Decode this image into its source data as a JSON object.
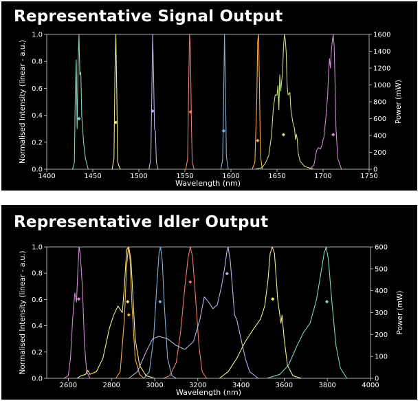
{
  "chart_data": [
    {
      "type": "line",
      "title": "Representative Signal Output",
      "xlabel": "Wavelength (nm)",
      "ylabel": "Normalised Intensity (linear - a.u.)",
      "y2label": "Power (mW)",
      "xlim": [
        1400,
        1750
      ],
      "ylim": [
        0,
        1.0
      ],
      "y2lim": [
        0,
        1600
      ],
      "xticks": [
        1400,
        1450,
        1500,
        1550,
        1600,
        1650,
        1700,
        1750
      ],
      "yticks": [
        0.0,
        0.2,
        0.4,
        0.6,
        0.8,
        1.0
      ],
      "y2ticks": [
        0,
        200,
        400,
        600,
        800,
        1000,
        1200,
        1400,
        1600
      ],
      "grid": false,
      "background": "#000000",
      "series": [
        {
          "color": "#7fd6c4",
          "points": [
            [
              1428,
              0
            ],
            [
              1430,
              0.05
            ],
            [
              1431,
              0.55
            ],
            [
              1432,
              0.81
            ],
            [
              1433,
              0.3
            ],
            [
              1434,
              0.78
            ],
            [
              1435,
              1.0
            ],
            [
              1436,
              0.7
            ],
            [
              1437,
              0.72
            ],
            [
              1438,
              0.4
            ],
            [
              1440,
              0.2
            ],
            [
              1442,
              0.08
            ],
            [
              1445,
              0
            ]
          ],
          "marker": [
            1435,
            600
          ]
        },
        {
          "color": "#f2ef8a",
          "points": [
            [
              1471,
              0
            ],
            [
              1473,
              0.08
            ],
            [
              1474,
              0.7
            ],
            [
              1475,
              1.0
            ],
            [
              1476,
              0.6
            ],
            [
              1477,
              0.06
            ],
            [
              1478,
              0.03
            ],
            [
              1480,
              0
            ]
          ],
          "marker": [
            1475,
            555
          ]
        },
        {
          "color": "#b9b4e6",
          "points": [
            [
              1511,
              0
            ],
            [
              1513,
              0.08
            ],
            [
              1514,
              0.55
            ],
            [
              1515,
              1.0
            ],
            [
              1516,
              0.7
            ],
            [
              1517,
              0.3
            ],
            [
              1518,
              0.28
            ],
            [
              1519,
              0.05
            ],
            [
              1521,
              0
            ]
          ],
          "marker": [
            1515,
            690
          ]
        },
        {
          "color": "#f07a6b",
          "points": [
            [
              1551,
              0
            ],
            [
              1553,
              0.08
            ],
            [
              1554,
              0.6
            ],
            [
              1555,
              1.0
            ],
            [
              1556,
              0.9
            ],
            [
              1557,
              0.35
            ],
            [
              1558,
              0.05
            ],
            [
              1560,
              0
            ]
          ],
          "marker": [
            1556,
            680
          ]
        },
        {
          "color": "#84b4db",
          "points": [
            [
              1589,
              0
            ],
            [
              1591,
              0.07
            ],
            [
              1592,
              0.5
            ],
            [
              1593,
              1.0
            ],
            [
              1594,
              0.6
            ],
            [
              1595,
              0.1
            ],
            [
              1597,
              0
            ]
          ],
          "marker": [
            1592,
            455
          ]
        },
        {
          "color": "#f4ab4f",
          "points": [
            [
              1623,
              0
            ],
            [
              1626,
              0.05
            ],
            [
              1628,
              0.5
            ],
            [
              1629,
              0.95
            ],
            [
              1630,
              1.0
            ],
            [
              1631,
              0.6
            ],
            [
              1632,
              0.1
            ],
            [
              1634,
              0
            ]
          ],
          "marker": [
            1629,
            340
          ]
        },
        {
          "color": "#c1e07a",
          "points": [
            [
              1626,
              0
            ],
            [
              1633,
              0.01
            ],
            [
              1637,
              0.04
            ],
            [
              1641,
              0.1
            ],
            [
              1644,
              0.25
            ],
            [
              1646,
              0.45
            ],
            [
              1648,
              0.55
            ],
            [
              1650,
              0.55
            ],
            [
              1651,
              0.62
            ],
            [
              1652,
              0.44
            ],
            [
              1653,
              0.7
            ],
            [
              1654,
              0.58
            ],
            [
              1656,
              0.72
            ],
            [
              1657,
              0.9
            ],
            [
              1658,
              1.0
            ],
            [
              1659,
              0.96
            ],
            [
              1660,
              0.86
            ],
            [
              1661,
              0.62
            ],
            [
              1662,
              0.55
            ],
            [
              1664,
              0.57
            ],
            [
              1665,
              0.45
            ],
            [
              1667,
              0.35
            ],
            [
              1669,
              0.3
            ],
            [
              1670,
              0.22
            ],
            [
              1671,
              0.26
            ],
            [
              1672,
              0.22
            ],
            [
              1673,
              0.12
            ],
            [
              1675,
              0.06
            ],
            [
              1680,
              0.02
            ],
            [
              1690,
              0
            ]
          ],
          "marker": [
            1657,
            410
          ]
        },
        {
          "color": "#d18ad6",
          "points": [
            [
              1685,
              0
            ],
            [
              1690,
              0.03
            ],
            [
              1693,
              0.14
            ],
            [
              1695,
              0.16
            ],
            [
              1697,
              0.15
            ],
            [
              1699,
              0.18
            ],
            [
              1700,
              0.22
            ],
            [
              1701,
              0.24
            ],
            [
              1703,
              0.38
            ],
            [
              1705,
              0.55
            ],
            [
              1706,
              0.72
            ],
            [
              1707,
              0.82
            ],
            [
              1708,
              0.75
            ],
            [
              1709,
              0.88
            ],
            [
              1710,
              0.95
            ],
            [
              1711,
              1.0
            ],
            [
              1712,
              0.92
            ],
            [
              1713,
              0.65
            ],
            [
              1714,
              0.3
            ],
            [
              1716,
              0.08
            ],
            [
              1720,
              0
            ]
          ],
          "marker": [
            1711,
            410
          ]
        }
      ]
    },
    {
      "type": "line",
      "title": "Representative Idler Output",
      "xlabel": "Wavelength (nm)",
      "ylabel": "Normalised Intensity (linear - a.u.)",
      "y2label": "Power (mW)",
      "xlim": [
        2500,
        4000
      ],
      "ylim": [
        0,
        1.0
      ],
      "y2lim": [
        0,
        600
      ],
      "xticks": [
        2600,
        2800,
        3000,
        3200,
        3400,
        3600,
        3800,
        4000
      ],
      "yticks": [
        0.0,
        0.2,
        0.4,
        0.6,
        0.8,
        1.0
      ],
      "y2ticks": [
        0,
        100,
        200,
        300,
        400,
        500,
        600
      ],
      "grid": false,
      "background": "#000000",
      "series": [
        {
          "color": "#d18ad6",
          "points": [
            [
              2580,
              0
            ],
            [
              2600,
              0.02
            ],
            [
              2610,
              0.15
            ],
            [
              2620,
              0.45
            ],
            [
              2630,
              0.65
            ],
            [
              2638,
              0.58
            ],
            [
              2645,
              0.85
            ],
            [
              2650,
              1.0
            ],
            [
              2655,
              0.95
            ],
            [
              2665,
              0.7
            ],
            [
              2675,
              0.25
            ],
            [
              2685,
              0.05
            ],
            [
              2700,
              0
            ]
          ],
          "marker": [
            2648,
            362
          ]
        },
        {
          "color": "#f2ef8a",
          "points": [
            [
              2640,
              0
            ],
            [
              2660,
              0.02
            ],
            [
              2680,
              0.03
            ],
            [
              2690,
              0.06
            ],
            [
              2700,
              0.03
            ],
            [
              2730,
              0.05
            ],
            [
              2760,
              0.15
            ],
            [
              2790,
              0.38
            ],
            [
              2810,
              0.48
            ],
            [
              2830,
              0.55
            ],
            [
              2850,
              0.5
            ],
            [
              2860,
              0.7
            ],
            [
              2870,
              0.98
            ],
            [
              2880,
              1.0
            ],
            [
              2890,
              0.9
            ],
            [
              2900,
              0.6
            ],
            [
              2910,
              0.3
            ],
            [
              2930,
              0.1
            ],
            [
              2960,
              0.02
            ],
            [
              3000,
              0
            ]
          ],
          "marker": [
            2875,
            350
          ]
        },
        {
          "color": "#f4ab4f",
          "points": [
            [
              2820,
              0
            ],
            [
              2840,
              0.05
            ],
            [
              2860,
              0.45
            ],
            [
              2870,
              0.85
            ],
            [
              2878,
              1.0
            ],
            [
              2886,
              0.9
            ],
            [
              2895,
              0.55
            ],
            [
              2910,
              0.15
            ],
            [
              2930,
              0.03
            ],
            [
              2950,
              0
            ]
          ],
          "marker": [
            2880,
            290
          ]
        },
        {
          "color": "#84b4db",
          "points": [
            [
              2950,
              0
            ],
            [
              2975,
              0.05
            ],
            [
              2995,
              0.3
            ],
            [
              3010,
              0.7
            ],
            [
              3020,
              0.95
            ],
            [
              3027,
              1.0
            ],
            [
              3035,
              0.9
            ],
            [
              3045,
              0.55
            ],
            [
              3060,
              0.15
            ],
            [
              3080,
              0.02
            ],
            [
              3100,
              0
            ]
          ],
          "marker": [
            3025,
            350
          ]
        },
        {
          "color": "#f07a6b",
          "points": [
            [
              3040,
              0
            ],
            [
              3070,
              0.02
            ],
            [
              3100,
              0.12
            ],
            [
              3120,
              0.35
            ],
            [
              3140,
              0.7
            ],
            [
              3155,
              0.92
            ],
            [
              3165,
              1.0
            ],
            [
              3175,
              0.93
            ],
            [
              3190,
              0.6
            ],
            [
              3205,
              0.25
            ],
            [
              3220,
              0.05
            ],
            [
              3240,
              0
            ]
          ],
          "marker": [
            3165,
            440
          ]
        },
        {
          "color": "#b9b4e6",
          "points": [
            [
              2880,
              0
            ],
            [
              2920,
              0.05
            ],
            [
              2960,
              0.2
            ],
            [
              2990,
              0.3
            ],
            [
              3020,
              0.32
            ],
            [
              3060,
              0.3
            ],
            [
              3100,
              0.25
            ],
            [
              3140,
              0.22
            ],
            [
              3180,
              0.28
            ],
            [
              3210,
              0.45
            ],
            [
              3230,
              0.62
            ],
            [
              3250,
              0.58
            ],
            [
              3270,
              0.53
            ],
            [
              3290,
              0.56
            ],
            [
              3310,
              0.7
            ],
            [
              3325,
              0.85
            ],
            [
              3335,
              0.97
            ],
            [
              3340,
              1.0
            ],
            [
              3350,
              0.9
            ],
            [
              3360,
              0.7
            ],
            [
              3370,
              0.48
            ],
            [
              3380,
              0.45
            ],
            [
              3400,
              0.3
            ],
            [
              3420,
              0.15
            ],
            [
              3440,
              0.05
            ],
            [
              3480,
              0
            ]
          ],
          "marker": [
            3335,
            478
          ]
        },
        {
          "color": "#f2ef8a",
          "points": [
            [
              3300,
              0
            ],
            [
              3340,
              0.05
            ],
            [
              3380,
              0.15
            ],
            [
              3420,
              0.28
            ],
            [
              3460,
              0.38
            ],
            [
              3490,
              0.45
            ],
            [
              3510,
              0.55
            ],
            [
              3525,
              0.75
            ],
            [
              3535,
              0.95
            ],
            [
              3545,
              1.0
            ],
            [
              3555,
              0.95
            ],
            [
              3570,
              0.6
            ],
            [
              3585,
              0.42
            ],
            [
              3590,
              0.48
            ],
            [
              3600,
              0.3
            ],
            [
              3615,
              0.1
            ],
            [
              3640,
              0.02
            ],
            [
              3680,
              0
            ]
          ],
          "marker": [
            3547,
            362
          ]
        },
        {
          "color": "#7fd6c4",
          "points": [
            [
              3520,
              0
            ],
            [
              3580,
              0.03
            ],
            [
              3620,
              0.1
            ],
            [
              3660,
              0.25
            ],
            [
              3690,
              0.35
            ],
            [
              3720,
              0.42
            ],
            [
              3750,
              0.6
            ],
            [
              3770,
              0.8
            ],
            [
              3785,
              0.95
            ],
            [
              3795,
              1.0
            ],
            [
              3805,
              0.9
            ],
            [
              3820,
              0.6
            ],
            [
              3840,
              0.25
            ],
            [
              3860,
              0.08
            ],
            [
              3890,
              0
            ]
          ],
          "marker": [
            3798,
            350
          ]
        }
      ]
    }
  ]
}
